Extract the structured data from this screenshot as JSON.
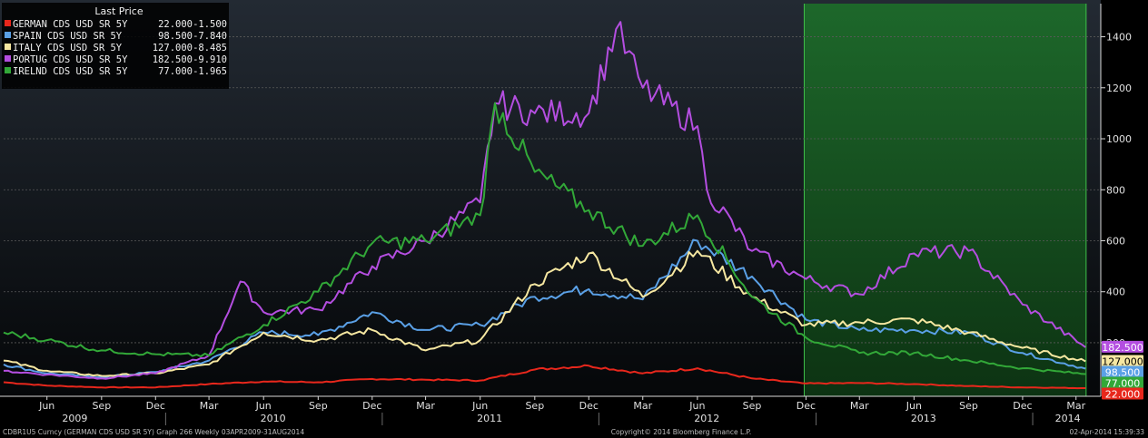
{
  "colors": {
    "background_top": "#232a33",
    "background_bottom": "#050709",
    "shade": "#1d6b2a",
    "axis": "#d9d9d9",
    "grid": "#5a5a5a"
  },
  "footer": {
    "left": "CDBR1U5 Curncy (GERMAN CDS USD SR 5Y) Graph 266  Weekly 03APR2009-31AUG2014",
    "center": "Copyright© 2014 Bloomberg Finance L.P.",
    "right": "02-Apr-2014 15:39:33"
  },
  "chart_data": {
    "type": "line",
    "title": "",
    "legend_title": "Last Price",
    "legend_position": "top-left",
    "grid": true,
    "x_range": [
      "2009-04-03",
      "2014-04-15"
    ],
    "ylim": [
      -10,
      1530
    ],
    "y_ticks": [
      200,
      400,
      600,
      800,
      1000,
      1200,
      1400
    ],
    "x_ticks": [
      {
        "label": "Jun",
        "date": "2009-06-15"
      },
      {
        "label": "Sep",
        "date": "2009-09-15"
      },
      {
        "label": "Dec",
        "date": "2009-12-15"
      },
      {
        "label": "Mar",
        "date": "2010-03-15"
      },
      {
        "label": "Jun",
        "date": "2010-06-15"
      },
      {
        "label": "Sep",
        "date": "2010-09-15"
      },
      {
        "label": "Dec",
        "date": "2010-12-15"
      },
      {
        "label": "Mar",
        "date": "2011-03-15"
      },
      {
        "label": "Jun",
        "date": "2011-06-15"
      },
      {
        "label": "Sep",
        "date": "2011-09-15"
      },
      {
        "label": "Dec",
        "date": "2011-12-15"
      },
      {
        "label": "Mar",
        "date": "2012-03-15"
      },
      {
        "label": "Jun",
        "date": "2012-06-15"
      },
      {
        "label": "Sep",
        "date": "2012-09-15"
      },
      {
        "label": "Dec",
        "date": "2012-12-15"
      },
      {
        "label": "Mar",
        "date": "2013-03-15"
      },
      {
        "label": "Jun",
        "date": "2013-06-15"
      },
      {
        "label": "Sep",
        "date": "2013-09-15"
      },
      {
        "label": "Dec",
        "date": "2013-12-15"
      },
      {
        "label": "Mar",
        "date": "2014-03-15"
      }
    ],
    "year_labels": [
      {
        "label": "2009",
        "date": "2009-08-01"
      },
      {
        "label": "2010",
        "date": "2010-07-01"
      },
      {
        "label": "2011",
        "date": "2011-07-01"
      },
      {
        "label": "2012",
        "date": "2012-07-01"
      },
      {
        "label": "2013",
        "date": "2013-07-01"
      },
      {
        "label": "2014",
        "date": "2014-03-01"
      }
    ],
    "year_boundaries": [
      "2010-01-01",
      "2011-01-01",
      "2012-01-01",
      "2013-01-01",
      "2014-01-01"
    ],
    "shaded_region": [
      "2012-12-12",
      "2014-04-01"
    ],
    "series": [
      {
        "name": "GERMAN CDS USD SR 5Y",
        "last": "22.000",
        "change": "-1.500",
        "color": "#e8271c",
        "end_label": "22.000",
        "points": [
          [
            "2009-04-03",
            45
          ],
          [
            "2009-06-15",
            32
          ],
          [
            "2009-09-15",
            25
          ],
          [
            "2009-12-15",
            25
          ],
          [
            "2010-03-15",
            38
          ],
          [
            "2010-06-15",
            48
          ],
          [
            "2010-09-15",
            45
          ],
          [
            "2010-12-15",
            58
          ],
          [
            "2011-03-15",
            55
          ],
          [
            "2011-06-15",
            52
          ],
          [
            "2011-09-15",
            95
          ],
          [
            "2011-12-15",
            110
          ],
          [
            "2012-03-15",
            80
          ],
          [
            "2012-06-15",
            100
          ],
          [
            "2012-09-15",
            60
          ],
          [
            "2012-12-15",
            40
          ],
          [
            "2013-03-15",
            42
          ],
          [
            "2013-06-15",
            38
          ],
          [
            "2013-09-15",
            30
          ],
          [
            "2013-12-15",
            25
          ],
          [
            "2014-03-31",
            22
          ]
        ]
      },
      {
        "name": "SPAIN CDS USD SR 5Y",
        "last": "98.500",
        "change": "-7.840",
        "color": "#5aa0e6",
        "end_label": "98.500",
        "points": [
          [
            "2009-04-03",
            115
          ],
          [
            "2009-06-15",
            80
          ],
          [
            "2009-09-15",
            65
          ],
          [
            "2009-12-15",
            85
          ],
          [
            "2010-03-15",
            130
          ],
          [
            "2010-06-15",
            240
          ],
          [
            "2010-09-15",
            230
          ],
          [
            "2010-12-15",
            320
          ],
          [
            "2011-03-15",
            250
          ],
          [
            "2011-06-15",
            270
          ],
          [
            "2011-09-15",
            380
          ],
          [
            "2011-12-15",
            410
          ],
          [
            "2012-03-15",
            370
          ],
          [
            "2012-06-15",
            600
          ],
          [
            "2012-09-15",
            460
          ],
          [
            "2012-12-15",
            290
          ],
          [
            "2013-03-15",
            250
          ],
          [
            "2013-06-15",
            250
          ],
          [
            "2013-09-15",
            240
          ],
          [
            "2013-12-15",
            160
          ],
          [
            "2014-03-31",
            98.5
          ]
        ]
      },
      {
        "name": "ITALY CDS USD SR 5Y",
        "last": "127.000",
        "change": "-8.485",
        "color": "#f6e7a1",
        "end_label": "127.000",
        "points": [
          [
            "2009-04-03",
            130
          ],
          [
            "2009-06-15",
            90
          ],
          [
            "2009-09-15",
            70
          ],
          [
            "2009-12-15",
            80
          ],
          [
            "2010-03-15",
            115
          ],
          [
            "2010-06-15",
            240
          ],
          [
            "2010-09-15",
            210
          ],
          [
            "2010-12-15",
            250
          ],
          [
            "2011-03-15",
            170
          ],
          [
            "2011-06-15",
            210
          ],
          [
            "2011-09-15",
            430
          ],
          [
            "2011-12-15",
            550
          ],
          [
            "2012-03-15",
            380
          ],
          [
            "2012-06-15",
            560
          ],
          [
            "2012-09-15",
            380
          ],
          [
            "2012-12-15",
            270
          ],
          [
            "2013-03-15",
            280
          ],
          [
            "2013-06-15",
            290
          ],
          [
            "2013-09-15",
            240
          ],
          [
            "2013-12-15",
            180
          ],
          [
            "2014-03-31",
            127
          ]
        ]
      },
      {
        "name": "PORTUG CDS USD SR 5Y",
        "last": "182.500",
        "change": "-9.910",
        "color": "#b44ee0",
        "end_label": "182.500",
        "points": [
          [
            "2009-04-03",
            90
          ],
          [
            "2009-06-15",
            75
          ],
          [
            "2009-09-15",
            60
          ],
          [
            "2009-12-15",
            80
          ],
          [
            "2010-03-15",
            150
          ],
          [
            "2010-05-07",
            440
          ],
          [
            "2010-06-15",
            320
          ],
          [
            "2010-09-15",
            330
          ],
          [
            "2010-12-15",
            500
          ],
          [
            "2011-03-15",
            600
          ],
          [
            "2011-06-15",
            750
          ],
          [
            "2011-07-10",
            1140
          ],
          [
            "2011-09-15",
            1100
          ],
          [
            "2011-12-15",
            1100
          ],
          [
            "2012-01-30",
            1430
          ],
          [
            "2012-03-15",
            1200
          ],
          [
            "2012-06-15",
            1050
          ],
          [
            "2012-07-01",
            800
          ],
          [
            "2012-09-15",
            560
          ],
          [
            "2012-12-15",
            450
          ],
          [
            "2013-03-15",
            390
          ],
          [
            "2013-06-15",
            550
          ],
          [
            "2013-09-15",
            560
          ],
          [
            "2013-12-15",
            350
          ],
          [
            "2014-03-31",
            182.5
          ]
        ]
      },
      {
        "name": "IRELND CDS USD SR 5Y",
        "last": "77.000",
        "change": "-1.965",
        "color": "#32a838",
        "end_label": "77.000",
        "points": [
          [
            "2009-04-03",
            240
          ],
          [
            "2009-06-15",
            210
          ],
          [
            "2009-09-15",
            170
          ],
          [
            "2009-12-15",
            155
          ],
          [
            "2010-03-15",
            150
          ],
          [
            "2010-06-15",
            270
          ],
          [
            "2010-09-15",
            400
          ],
          [
            "2010-12-15",
            590
          ],
          [
            "2011-03-15",
            600
          ],
          [
            "2011-06-15",
            700
          ],
          [
            "2011-07-10",
            1140
          ],
          [
            "2011-09-15",
            870
          ],
          [
            "2011-12-15",
            720
          ],
          [
            "2012-03-15",
            580
          ],
          [
            "2012-06-15",
            700
          ],
          [
            "2012-09-15",
            380
          ],
          [
            "2012-12-15",
            220
          ],
          [
            "2013-03-15",
            160
          ],
          [
            "2013-06-15",
            160
          ],
          [
            "2013-09-15",
            130
          ],
          [
            "2013-12-15",
            100
          ],
          [
            "2014-03-31",
            77
          ]
        ]
      }
    ]
  }
}
